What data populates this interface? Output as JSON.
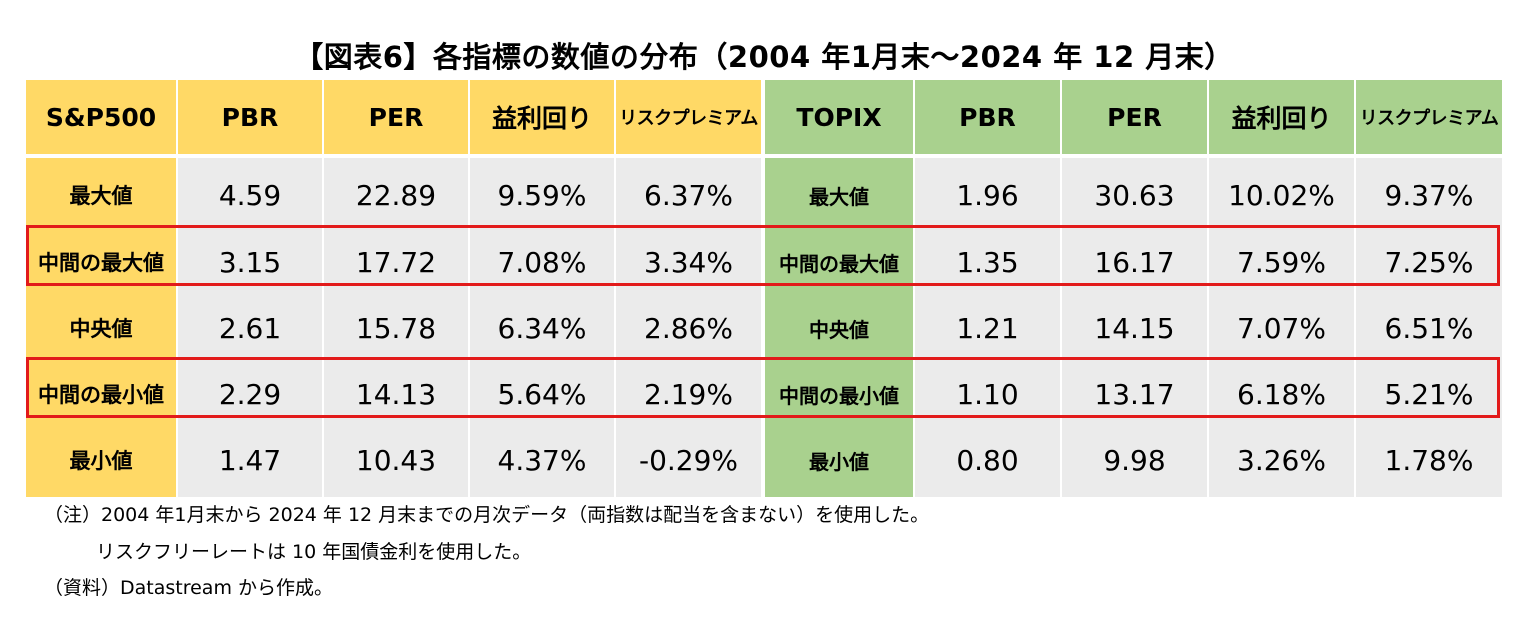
{
  "title": "【図表6】各指標の数値の分布（2004 年1月末～2024 年 12 月末）",
  "header": {
    "sp500": "S&P500",
    "sp_pbr": "PBR",
    "sp_per": "PER",
    "sp_ey": "益利回り",
    "sp_rp": "リスクプレミアム",
    "topix": "TOPIX",
    "tp_pbr": "PBR",
    "tp_per": "PER",
    "tp_ey": "益利回り",
    "tp_rp": "リスクプレミアム"
  },
  "rows": [
    {
      "label": "最大値",
      "sp": [
        "4.59",
        "22.89",
        "9.59%",
        "6.37%"
      ],
      "topix_label": "最大値",
      "tp": [
        "1.96",
        "30.63",
        "10.02%",
        "9.37%"
      ]
    },
    {
      "label": "中間の最大値",
      "sp": [
        "3.15",
        "17.72",
        "7.08%",
        "3.34%"
      ],
      "topix_label": "中間の最大値",
      "tp": [
        "1.35",
        "16.17",
        "7.59%",
        "7.25%"
      ]
    },
    {
      "label": "中央値",
      "sp": [
        "2.61",
        "15.78",
        "6.34%",
        "2.86%"
      ],
      "topix_label": "中央値",
      "tp": [
        "1.21",
        "14.15",
        "7.07%",
        "6.51%"
      ]
    },
    {
      "label": "中間の最小値",
      "sp": [
        "2.29",
        "14.13",
        "5.64%",
        "2.19%"
      ],
      "topix_label": "中間の最小値",
      "tp": [
        "1.10",
        "13.17",
        "6.18%",
        "5.21%"
      ]
    },
    {
      "label": "最小値",
      "sp": [
        "1.47",
        "10.43",
        "4.37%",
        "-0.29%"
      ],
      "topix_label": "最小値",
      "tp": [
        "0.80",
        "9.98",
        "3.26%",
        "1.78%"
      ]
    }
  ],
  "notes": {
    "note1": "（注）2004 年1月末から 2024 年 12 月末までの月次データ（両指数は配当を含まない）を使用した。",
    "note2": "リスクフリーレートは 10 年国債金利を使用した。",
    "source": "（資料）Datastream から作成。"
  },
  "colors": {
    "sp_header": "#ffd966",
    "topix_header": "#a9d18e",
    "value_cell": "#ebebeb",
    "highlight_border": "#e21a1a"
  }
}
